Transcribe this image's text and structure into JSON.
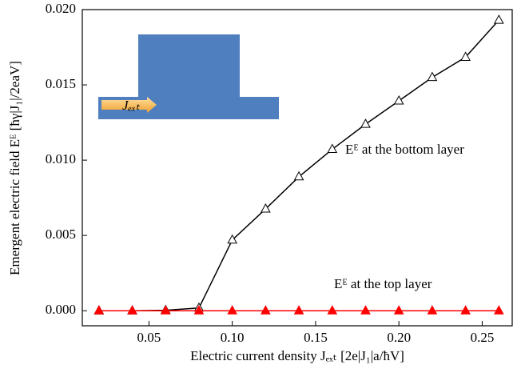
{
  "chart_data": {
    "type": "line",
    "x": [
      0.02,
      0.04,
      0.06,
      0.08,
      0.1,
      0.12,
      0.14,
      0.16,
      0.18,
      0.2,
      0.22,
      0.24,
      0.26
    ],
    "series": [
      {
        "color": "#000000",
        "marker": "open-triangle",
        "values": [
          0,
          0,
          3e-05,
          0.00018,
          0.0047,
          0.00676,
          0.0089,
          0.01072,
          0.01239,
          0.01394,
          0.0155,
          0.01684,
          0.0193
        ]
      },
      {
        "color": "#ff0000",
        "marker": "filled-triangle",
        "values": [
          0,
          0,
          0,
          0,
          0,
          0,
          0,
          0,
          0,
          0,
          0,
          0,
          0
        ]
      }
    ],
    "xlabel": "Electric current density Jₑₓₜ [2e|J₁|a/ħV]",
    "ylabel": "Emergent electric field Eᴱ [ħγ|J₁|/2eaV]",
    "annotations": [
      "Eᴱ  at the bottom layer",
      "Eᴱ  at the top layer"
    ],
    "inset_label": "Jₑₓₜ",
    "xlim": [
      0.01,
      0.268
    ],
    "ylim": [
      -0.001,
      0.02
    ],
    "xticks": [
      0.05,
      {
        "value": 0.1,
        "label": "0.10"
      },
      0.15,
      {
        "value": 0.2,
        "label": "0.20"
      },
      0.25
    ],
    "yticks": [
      {
        "value": 0,
        "label": "0.000"
      },
      {
        "value": 0.005,
        "label": "0.005"
      },
      {
        "value": 0.01,
        "label": "0.010"
      },
      {
        "value": 0.015,
        "label": "0.015"
      },
      {
        "value": 0.02,
        "label": "0.020"
      }
    ]
  }
}
